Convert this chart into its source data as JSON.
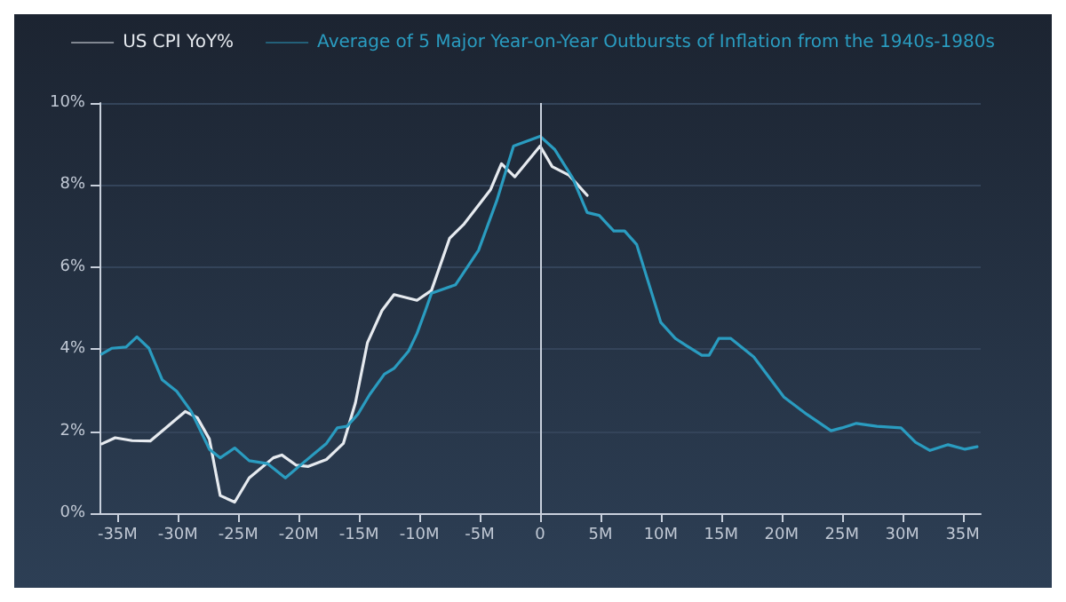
{
  "chart_data": {
    "type": "line",
    "xlim": [
      -36.5,
      36.5
    ],
    "xticks": [
      {
        "value": -35,
        "label": "-35M"
      },
      {
        "value": -30,
        "label": "-30M"
      },
      {
        "value": -25,
        "label": "-25M"
      },
      {
        "value": -20,
        "label": "-20M"
      },
      {
        "value": -15,
        "label": "-15M"
      },
      {
        "value": -10,
        "label": "-10M"
      },
      {
        "value": -5,
        "label": "-5M"
      },
      0,
      {
        "value": 5,
        "label": "5M"
      },
      {
        "value": 10,
        "label": "10M"
      },
      {
        "value": 15,
        "label": "15M"
      },
      {
        "value": 20,
        "label": "20M"
      },
      {
        "value": 25,
        "label": "25M"
      },
      {
        "value": 30,
        "label": "30M"
      },
      {
        "value": 35,
        "label": "35M"
      }
    ],
    "ylim": [
      0,
      10
    ],
    "yticks": [
      {
        "value": 0,
        "label": "0%"
      },
      {
        "value": 2,
        "label": "2%"
      },
      {
        "value": 4,
        "label": "4%"
      },
      {
        "value": 6,
        "label": "6%"
      },
      {
        "value": 8,
        "label": "8%"
      },
      {
        "value": 10,
        "label": "10%"
      }
    ],
    "grid": "y",
    "legend": "top",
    "marker": "none",
    "line_style": "solid",
    "ref_lines": [
      {
        "axis": "x",
        "value": 0,
        "color": "#c8d0dc"
      }
    ],
    "series": [
      {
        "name": "US CPI YoY%",
        "color": "#e6eaef",
        "x": [
          -36.3,
          -35.2,
          -33.8,
          -32.3,
          -29.4,
          -28.4,
          -27.4,
          -26.5,
          -25.3,
          -24.1,
          -22.1,
          -21.4,
          -20.2,
          -19.2,
          -17.7,
          -16.3,
          -15.3,
          -14.3,
          -13.1,
          -12.1,
          -10.2,
          -9.0,
          -7.5,
          -6.3,
          -4.1,
          -3.2,
          -2.1,
          0,
          1.0,
          2.4,
          3.9
        ],
        "values": [
          1.69,
          1.84,
          1.77,
          1.76,
          2.48,
          2.33,
          1.81,
          0.43,
          0.27,
          0.86,
          1.35,
          1.42,
          1.17,
          1.14,
          1.31,
          1.7,
          2.69,
          4.16,
          4.94,
          5.33,
          5.19,
          5.43,
          6.7,
          7.05,
          7.89,
          8.52,
          8.2,
          8.95,
          8.45,
          8.24,
          7.75
        ]
      },
      {
        "name": "Average of 5 Major Year-on-Year Outbursts of Inflation from the 1940s-1980s",
        "color": "#2a9cc0",
        "x": [
          -36.3,
          -35.5,
          -34.3,
          -33.4,
          -32.4,
          -31.3,
          -30.1,
          -28.9,
          -27.4,
          -26.5,
          -25.3,
          -24.1,
          -22.6,
          -21.1,
          -19.7,
          -17.7,
          -16.8,
          -16.0,
          -15.1,
          -14.1,
          -12.9,
          -12.1,
          -10.9,
          -10.2,
          -9.5,
          -9.0,
          -7.0,
          -5.1,
          -3.6,
          -2.2,
          0,
          1.2,
          2.7,
          3.9,
          4.9,
          6.1,
          7.0,
          8.0,
          10.0,
          11.2,
          12.1,
          13.4,
          14.0,
          14.8,
          15.8,
          17.7,
          20.2,
          22.1,
          24.1,
          25.0,
          26.2,
          27.9,
          29.9,
          31.1,
          32.3,
          33.8,
          35.2,
          36.2
        ],
        "values": [
          3.88,
          4.02,
          4.05,
          4.3,
          4.02,
          3.25,
          2.97,
          2.48,
          1.56,
          1.35,
          1.59,
          1.28,
          1.21,
          0.86,
          1.21,
          1.7,
          2.08,
          2.12,
          2.41,
          2.9,
          3.39,
          3.53,
          3.95,
          4.38,
          4.94,
          5.36,
          5.57,
          6.41,
          7.61,
          8.95,
          9.19,
          8.87,
          8.17,
          7.33,
          7.26,
          6.88,
          6.88,
          6.55,
          4.65,
          4.26,
          4.09,
          3.85,
          3.85,
          4.26,
          4.26,
          3.81,
          2.83,
          2.41,
          2.01,
          2.08,
          2.19,
          2.12,
          2.08,
          1.73,
          1.53,
          1.67,
          1.56,
          1.62
        ]
      }
    ]
  }
}
